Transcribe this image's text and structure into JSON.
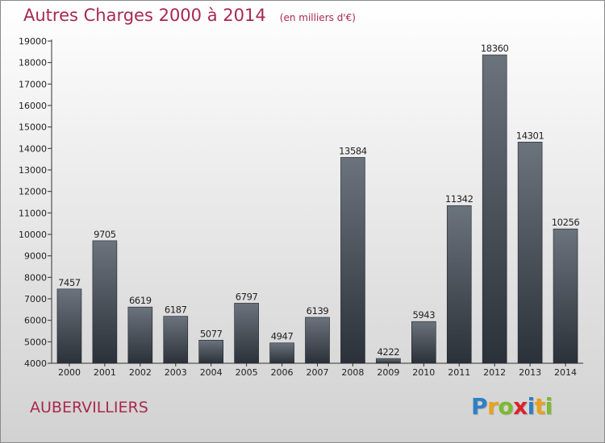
{
  "header": {
    "title": "Autres Charges 2000 à 2014",
    "unit": "(en milliers d'€)"
  },
  "footer": {
    "city": "AUBERVILLIERS",
    "logo_letters": [
      "P",
      "r",
      "o",
      "x",
      "i",
      "t",
      "i"
    ],
    "logo_colors": [
      "#2f7fc4",
      "#e8a21c",
      "#7cbb2c",
      "#d8232a",
      "#2f7fc4",
      "#e8a21c",
      "#7cbb2c"
    ]
  },
  "colors": {
    "title": "#a8294f",
    "bar_top": "#6b737d",
    "bar_bottom": "#2b3138",
    "axis": "#333333"
  },
  "chart_data": {
    "type": "bar",
    "title": "Autres Charges 2000 à 2014",
    "subtitle": "(en milliers d'€)",
    "categories": [
      "2000",
      "2001",
      "2002",
      "2003",
      "2004",
      "2005",
      "2006",
      "2007",
      "2008",
      "2009",
      "2010",
      "2011",
      "2012",
      "2013",
      "2014"
    ],
    "values": [
      7457,
      9705,
      6619,
      6187,
      5077,
      6797,
      4947,
      6139,
      13584,
      4222,
      5943,
      11342,
      18360,
      14301,
      10256
    ],
    "data_labels": [
      "7457",
      "9705",
      "6619",
      "6187",
      "5077",
      "6797",
      "4947",
      "6139",
      "13584",
      "4222",
      "5943",
      "11342",
      "18360",
      "14301",
      "10256"
    ],
    "ylim": [
      4000,
      19000
    ],
    "yticks": [
      4000,
      5000,
      6000,
      7000,
      8000,
      9000,
      10000,
      11000,
      12000,
      13000,
      14000,
      15000,
      16000,
      17000,
      18000,
      19000
    ],
    "ytick_labels": [
      "4000",
      "5000",
      "6000",
      "7000",
      "8000",
      "9000",
      "10000",
      "11000",
      "12000",
      "13000",
      "14000",
      "15000",
      "16000",
      "17000",
      "18000",
      "19000"
    ],
    "xlabel": "",
    "ylabel": "",
    "grid": false,
    "legend": false
  }
}
